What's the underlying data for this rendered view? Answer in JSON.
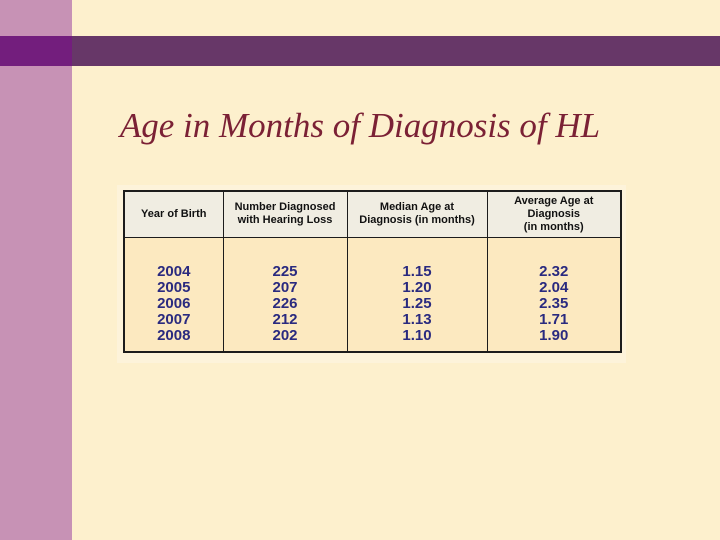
{
  "slide": {
    "title": "Age in Months of Diagnosis of HL"
  },
  "table": {
    "headers": [
      "Year of Birth",
      "Number Diagnosed\nwith Hearing Loss",
      "Median Age at\nDiagnosis (in months)",
      "Average Age at\nDiagnosis\n(in months)"
    ],
    "rows": [
      [
        "2004",
        "225",
        "1.15",
        "2.32"
      ],
      [
        "2005",
        "207",
        "1.20",
        "2.04"
      ],
      [
        "2006",
        "226",
        "1.25",
        "2.35"
      ],
      [
        "2007",
        "212",
        "1.13",
        "1.71"
      ],
      [
        "2008",
        "202",
        "1.10",
        "1.90"
      ]
    ]
  },
  "colors": {
    "slide_background": "#fdf0cd",
    "sidebar_pink": "#c792b5",
    "accent_purple_bright": "#731e7d",
    "accent_purple_muted": "#673768",
    "title_maroon": "#7b2135",
    "table_header_background": "#f0ede2",
    "table_body_background": "#fce9c0",
    "table_border": "#1c1c1c",
    "data_text_navy": "#2a2a7f"
  }
}
